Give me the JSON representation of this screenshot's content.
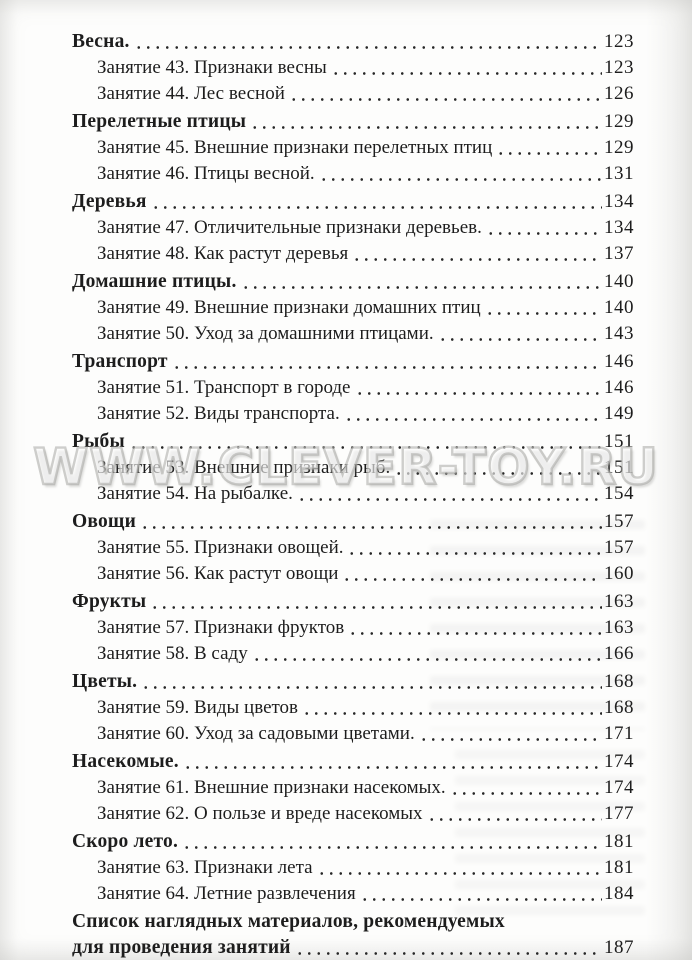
{
  "colors": {
    "ink": "#1d1d1d",
    "paper": "#fdfdfc",
    "watermark_outline": "#a8a8a4"
  },
  "watermark": {
    "text": "WWW.CLEVER-TOY.RU"
  },
  "toc": {
    "entries": [
      {
        "style": "section",
        "text": "Весна.",
        "page": "123"
      },
      {
        "style": "lesson",
        "text": "Занятие 43. Признаки весны",
        "page": "123"
      },
      {
        "style": "lesson",
        "text": "Занятие 44. Лес весной",
        "page": "126"
      },
      {
        "style": "section",
        "text": "Перелетные птицы",
        "page": "129"
      },
      {
        "style": "lesson",
        "text": "Занятие 45. Внешние признаки перелетных птиц",
        "page": "129"
      },
      {
        "style": "lesson",
        "text": "Занятие 46. Птицы весной.",
        "page": "131"
      },
      {
        "style": "section",
        "text": "Деревья",
        "page": "134"
      },
      {
        "style": "lesson",
        "text": "Занятие 47. Отличительные признаки деревьев.",
        "page": "134"
      },
      {
        "style": "lesson",
        "text": "Занятие 48. Как растут деревья",
        "page": "137"
      },
      {
        "style": "section",
        "text": "Домашние птицы.",
        "page": "140"
      },
      {
        "style": "lesson",
        "text": "Занятие 49. Внешние признаки домашних птиц",
        "page": "140"
      },
      {
        "style": "lesson",
        "text": "Занятие 50. Уход за домашними птицами.",
        "page": "143"
      },
      {
        "style": "section",
        "text": "Транспорт",
        "page": "146"
      },
      {
        "style": "lesson",
        "text": "Занятие 51. Транспорт в городе",
        "page": "146"
      },
      {
        "style": "lesson",
        "text": "Занятие 52. Виды транспорта.",
        "page": "149"
      },
      {
        "style": "section",
        "text": "Рыбы",
        "page": "151"
      },
      {
        "style": "lesson",
        "text": "Занятие 53. Внешние признаки рыб.",
        "page": "151"
      },
      {
        "style": "lesson",
        "text": "Занятие 54. На рыбалке.",
        "page": "154"
      },
      {
        "style": "section",
        "text": "Овощи",
        "page": "157"
      },
      {
        "style": "lesson",
        "text": "Занятие 55. Признаки овощей.",
        "page": "157"
      },
      {
        "style": "lesson",
        "text": "Занятие 56. Как растут овощи",
        "page": "160"
      },
      {
        "style": "section",
        "text": "Фрукты",
        "page": "163"
      },
      {
        "style": "lesson",
        "text": "Занятие 57. Признаки фруктов",
        "page": "163"
      },
      {
        "style": "lesson",
        "text": "Занятие 58. В саду",
        "page": "166"
      },
      {
        "style": "section",
        "text": "Цветы.",
        "page": "168"
      },
      {
        "style": "lesson",
        "text": "Занятие 59. Виды цветов",
        "page": "168"
      },
      {
        "style": "lesson",
        "text": "Занятие 60. Уход за садовыми цветами.",
        "page": "171"
      },
      {
        "style": "section",
        "text": "Насекомые.",
        "page": "174"
      },
      {
        "style": "lesson",
        "text": "Занятие 61. Внешние признаки насекомых.",
        "page": "174"
      },
      {
        "style": "lesson",
        "text": "Занятие 62. О пользе и вреде насекомых",
        "page": "177"
      },
      {
        "style": "section",
        "text": "Скоро лето.",
        "page": "181"
      },
      {
        "style": "lesson",
        "text": "Занятие 63. Признаки лета",
        "page": "181"
      },
      {
        "style": "lesson",
        "text": "Занятие 64. Летние развлечения",
        "page": "184"
      },
      {
        "style": "section",
        "text": "Список наглядных материалов, рекомендуемых",
        "text2": "для проведения занятий",
        "page": "187"
      }
    ]
  }
}
